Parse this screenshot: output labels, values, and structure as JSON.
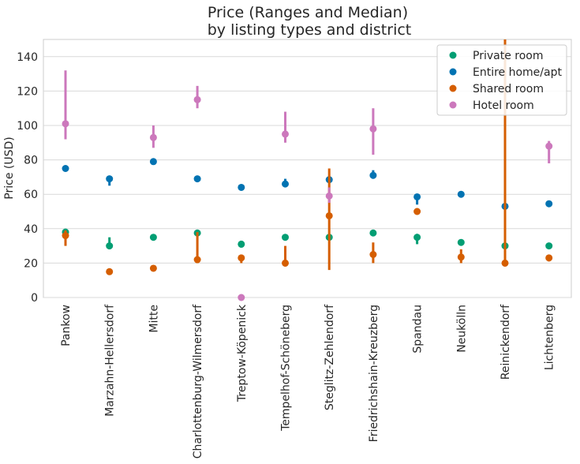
{
  "chart_data": {
    "type": "pointplot",
    "title": "Price (Ranges and Median)",
    "subtitle": "by listing types and district",
    "xlabel": "",
    "ylabel": "Price (USD)",
    "ylim": [
      0,
      150
    ],
    "yticks": [
      0,
      20,
      40,
      60,
      80,
      100,
      120,
      140
    ],
    "grid": true,
    "legend_position": "top-right",
    "categories": [
      "Pankow",
      "Marzahn-Hellersdorf",
      "Mitte",
      "Charlottenburg-Wilmersdorf",
      "Treptow-Köpenick",
      "Tempelhof-Schöneberg",
      "Steglitz-Zehlendorf",
      "Friedrichshain-Kreuzberg",
      "Spandau",
      "Neukölln",
      "Reinickendorf",
      "Lichtenberg"
    ],
    "series": [
      {
        "name": "Private room",
        "color": "#029e73",
        "values": [
          38,
          30,
          35,
          37.5,
          31,
          35,
          35,
          37.5,
          35,
          32,
          30,
          30
        ],
        "low": [
          35,
          28,
          34,
          36,
          29,
          34,
          34,
          36,
          31,
          31,
          29,
          29
        ],
        "high": [
          40,
          35,
          36,
          39,
          33,
          36,
          36,
          39,
          37,
          33,
          32,
          31
        ]
      },
      {
        "name": "Entire home/apt",
        "color": "#0173b2",
        "values": [
          75,
          69,
          79,
          69,
          64,
          66,
          68.5,
          71,
          58.5,
          60,
          53,
          54.5
        ],
        "low": [
          74,
          65,
          78,
          68,
          63,
          64,
          67,
          69,
          54,
          59,
          52,
          54
        ],
        "high": [
          76,
          70,
          80,
          70,
          65,
          69,
          69,
          74,
          60,
          61,
          54,
          55
        ]
      },
      {
        "name": "Shared room",
        "color": "#d55e00",
        "values": [
          36,
          15,
          17,
          22,
          23,
          20,
          47.5,
          25,
          50,
          23.5,
          20,
          23
        ],
        "low": [
          30,
          14,
          16,
          20,
          20,
          18,
          16,
          20,
          49,
          20,
          18,
          21
        ],
        "high": [
          39,
          16,
          18,
          38,
          25,
          30,
          75,
          32,
          51,
          28,
          150,
          25
        ]
      },
      {
        "name": "Hotel room",
        "color": "#cc78bc",
        "values": [
          101,
          null,
          93,
          115,
          0,
          95,
          59,
          98,
          null,
          null,
          null,
          88
        ],
        "low": [
          92,
          null,
          87,
          110,
          0,
          90,
          55,
          83,
          null,
          null,
          null,
          78
        ],
        "high": [
          132,
          null,
          100,
          123,
          0,
          108,
          64,
          110,
          null,
          null,
          null,
          91
        ]
      }
    ]
  }
}
